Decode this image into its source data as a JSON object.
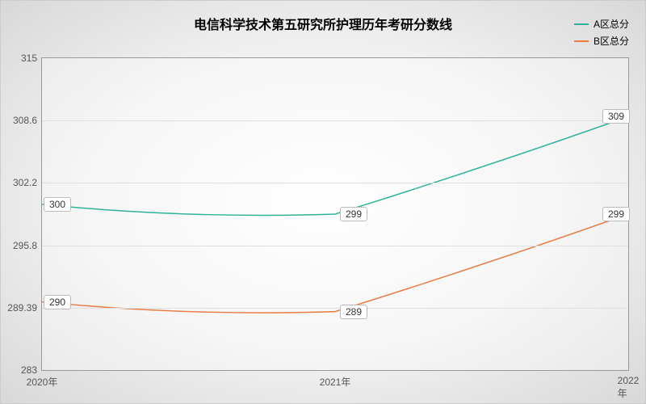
{
  "chart": {
    "type": "line",
    "title": "电信科学技术第五研究所护理历年考研分数线",
    "title_fontsize": 16,
    "title_fontweight": "bold",
    "background_gradient": {
      "center": "#ffffff",
      "edge": "#d8d8d8"
    },
    "plot_border_color": "#999999",
    "grid_color": "#e0e0e0",
    "label_fontsize": 12,
    "label_color": "#555555",
    "data_label_bg": "#ffffff",
    "data_label_border": "#bbbbbb",
    "line_width": 1.5,
    "curve_smooth": true,
    "x": {
      "categories": [
        "2020年",
        "2021年",
        "2022年"
      ]
    },
    "y": {
      "min": 283,
      "max": 315,
      "ticks": [
        283,
        289.39,
        295.8,
        302.2,
        308.6,
        315
      ],
      "tick_labels": [
        "283",
        "289.39",
        "295.8",
        "302.2",
        "308.6",
        "315"
      ]
    },
    "series": [
      {
        "name": "A区总分",
        "color": "#2eb39a",
        "values": [
          300,
          299,
          309
        ],
        "labels": [
          "300",
          "299",
          "309"
        ]
      },
      {
        "name": "B区总分",
        "color": "#e87c45",
        "values": [
          290,
          289,
          299
        ],
        "labels": [
          "290",
          "289",
          "299"
        ]
      }
    ],
    "legend": {
      "position": "top-right"
    }
  }
}
